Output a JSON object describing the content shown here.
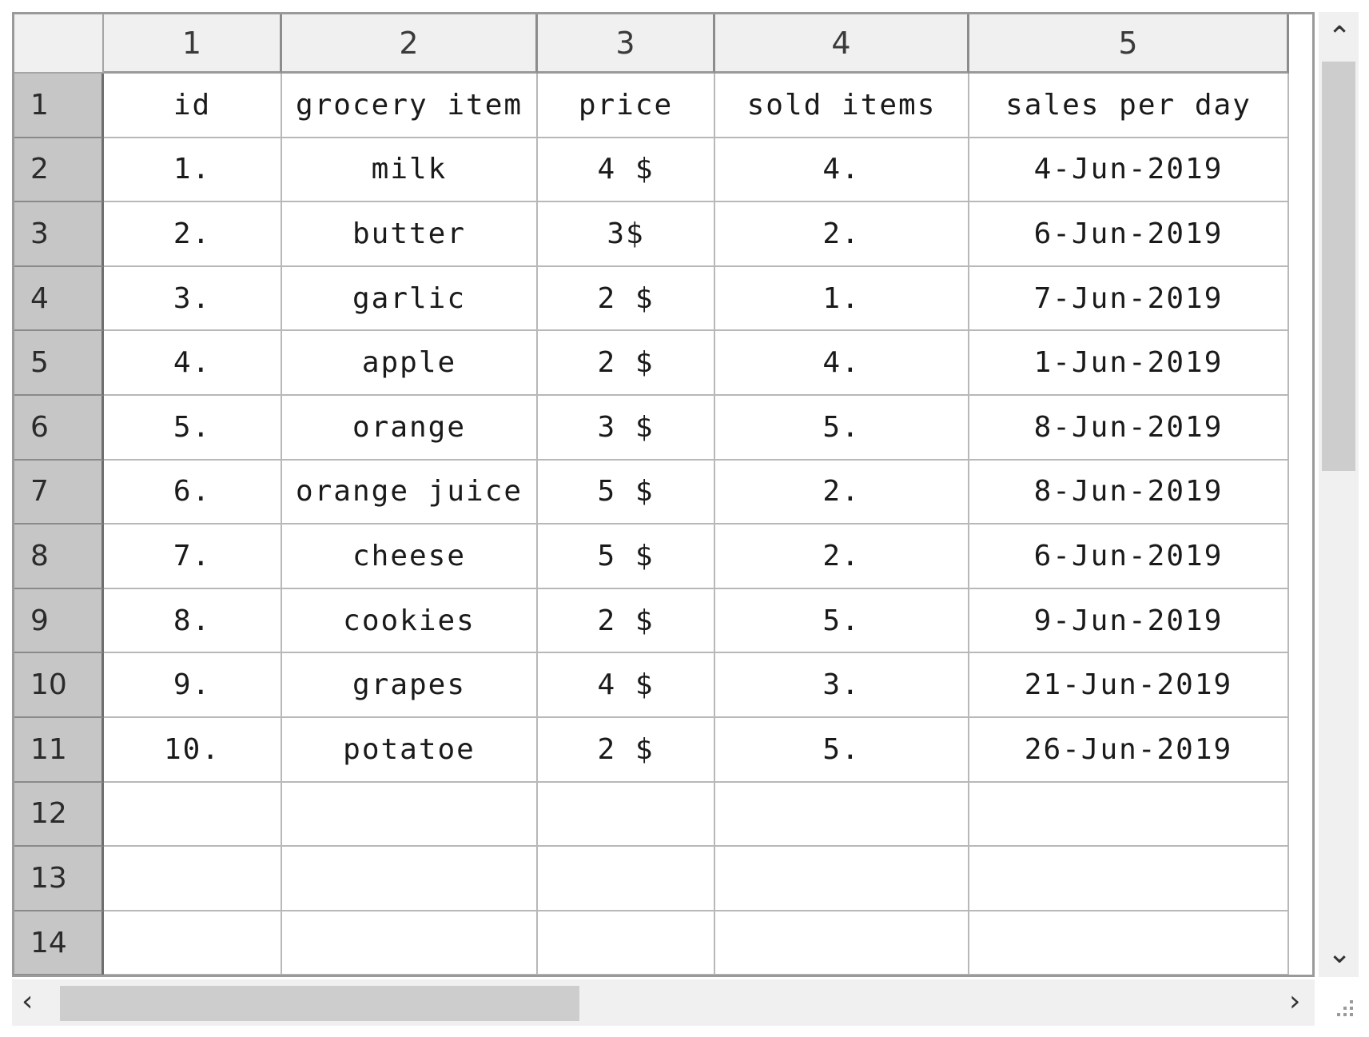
{
  "column_headers": [
    "1",
    "2",
    "3",
    "4",
    "5"
  ],
  "row_headers": [
    "1",
    "2",
    "3",
    "4",
    "5",
    "6",
    "7",
    "8",
    "9",
    "10",
    "11",
    "12",
    "13",
    "14"
  ],
  "rows": [
    [
      "id",
      "grocery item",
      "price",
      "sold items",
      "sales per day"
    ],
    [
      "1.",
      "milk",
      "4 $",
      "4.",
      "4-Jun-2019"
    ],
    [
      "2.",
      "butter",
      "3$",
      "2.",
      "6-Jun-2019"
    ],
    [
      "3.",
      "garlic",
      "2 $",
      "1.",
      "7-Jun-2019"
    ],
    [
      "4.",
      "apple",
      "2 $",
      "4.",
      "1-Jun-2019"
    ],
    [
      "5.",
      "orange",
      "3 $",
      "5.",
      "8-Jun-2019"
    ],
    [
      "6.",
      "orange juice",
      "5 $",
      "2.",
      "8-Jun-2019"
    ],
    [
      "7.",
      "cheese",
      "5 $",
      "2.",
      "6-Jun-2019"
    ],
    [
      "8.",
      "cookies",
      "2 $",
      "5.",
      "9-Jun-2019"
    ],
    [
      "9.",
      "grapes",
      "4 $",
      "3.",
      "21-Jun-2019"
    ],
    [
      "10.",
      "potatoe",
      "2 $",
      "5.",
      "26-Jun-2019"
    ],
    [
      "",
      "",
      "",
      "",
      ""
    ],
    [
      "",
      "",
      "",
      "",
      ""
    ],
    [
      "",
      "",
      "",
      "",
      ""
    ]
  ],
  "icons": {
    "scroll_up": "chevron-up-icon",
    "scroll_down": "chevron-down-icon",
    "scroll_left": "chevron-left-icon",
    "scroll_right": "chevron-right-icon",
    "resize": "resize-grip-icon"
  },
  "colors": {
    "header_bg": "#f0f0f0",
    "row_header_bg": "#c6c6c6",
    "grid_line": "#b8b8b8",
    "scrollbar_thumb": "#cdcdcd"
  }
}
